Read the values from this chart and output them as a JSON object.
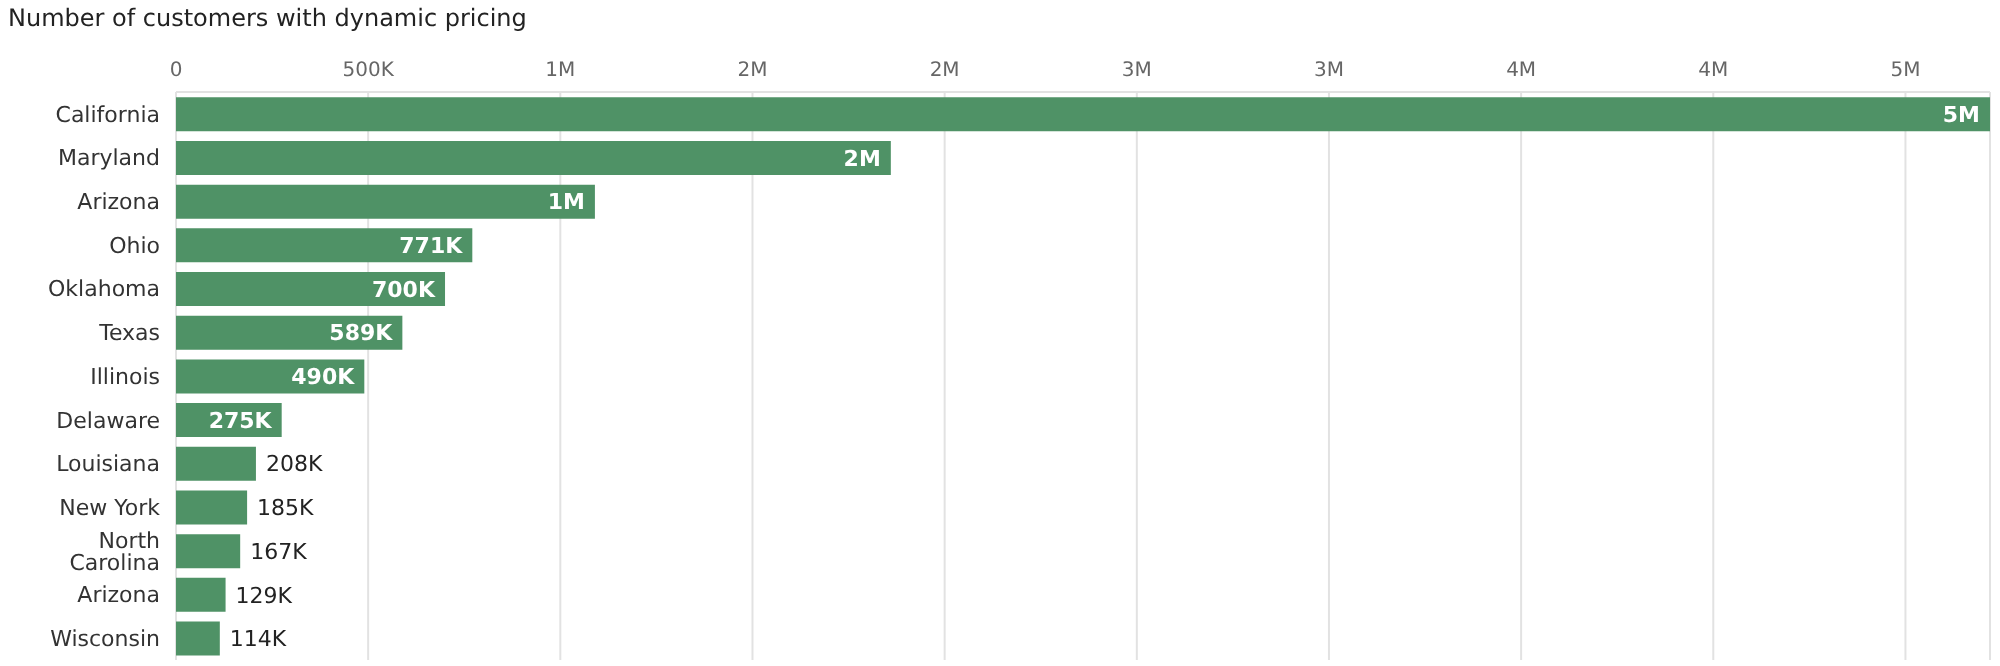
{
  "chart_data": {
    "type": "bar",
    "orientation": "horizontal",
    "title": "Number of customers with dynamic pricing",
    "categories": [
      "California",
      "Maryland",
      "Arizona",
      "Ohio",
      "Oklahoma",
      "Texas",
      "Illinois",
      "Delaware",
      "Louisiana",
      "New York",
      "North Carolina",
      "Arizona",
      "Wisconsin"
    ],
    "values": [
      4720000,
      1860000,
      1090000,
      771000,
      700000,
      589000,
      490000,
      275000,
      208000,
      185000,
      167000,
      129000,
      114000
    ],
    "value_labels": [
      "5M",
      "2M",
      "1M",
      "771K",
      "700K",
      "589K",
      "490K",
      "275K",
      "208K",
      "185K",
      "167K",
      "129K",
      "114K"
    ],
    "color": "#4f9266",
    "xlim": [
      0,
      4720000
    ],
    "xticks": [
      0,
      {
        "value": 500000,
        "label": "500K"
      },
      {
        "value": 1000000,
        "label": "1M"
      },
      {
        "value": 1500000,
        "label": "2M"
      },
      {
        "value": 2000000,
        "label": "2M"
      },
      {
        "value": 2500000,
        "label": "3M"
      },
      {
        "value": 3000000,
        "label": "3M"
      },
      {
        "value": 3500000,
        "label": "4M"
      },
      {
        "value": 4000000,
        "label": "4M"
      },
      {
        "value": 4500000,
        "label": "5M"
      }
    ],
    "grid": "x"
  }
}
